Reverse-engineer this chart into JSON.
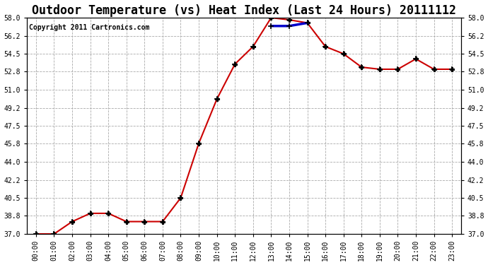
{
  "title": "Outdoor Temperature (vs) Heat Index (Last 24 Hours) 20111112",
  "copyright": "Copyright 2011 Cartronics.com",
  "x_labels": [
    "00:00",
    "01:00",
    "02:00",
    "03:00",
    "04:00",
    "05:00",
    "06:00",
    "07:00",
    "08:00",
    "09:00",
    "10:00",
    "11:00",
    "12:00",
    "13:00",
    "14:00",
    "15:00",
    "16:00",
    "17:00",
    "18:00",
    "19:00",
    "20:00",
    "21:00",
    "22:00",
    "23:00"
  ],
  "temp_data": [
    37.0,
    37.0,
    38.2,
    39.0,
    39.0,
    38.2,
    38.2,
    38.2,
    40.5,
    45.8,
    50.1,
    53.5,
    55.2,
    58.0,
    57.8,
    57.5,
    55.2,
    54.5,
    53.2,
    53.0,
    53.0,
    54.0,
    53.0,
    53.0
  ],
  "heat_data": [
    null,
    null,
    null,
    null,
    null,
    null,
    null,
    null,
    null,
    null,
    null,
    null,
    null,
    57.2,
    57.2,
    57.5,
    null,
    null,
    null,
    null,
    null,
    null,
    null,
    null
  ],
  "temp_color": "#cc0000",
  "heat_color": "#0000cc",
  "ylim_min": 37.0,
  "ylim_max": 58.0,
  "yticks": [
    37.0,
    38.8,
    40.5,
    42.2,
    44.0,
    45.8,
    47.5,
    49.2,
    51.0,
    52.8,
    54.5,
    56.2,
    58.0
  ],
  "background_color": "#ffffff",
  "grid_color": "#aaaaaa",
  "title_fontsize": 12,
  "copyright_fontsize": 7
}
